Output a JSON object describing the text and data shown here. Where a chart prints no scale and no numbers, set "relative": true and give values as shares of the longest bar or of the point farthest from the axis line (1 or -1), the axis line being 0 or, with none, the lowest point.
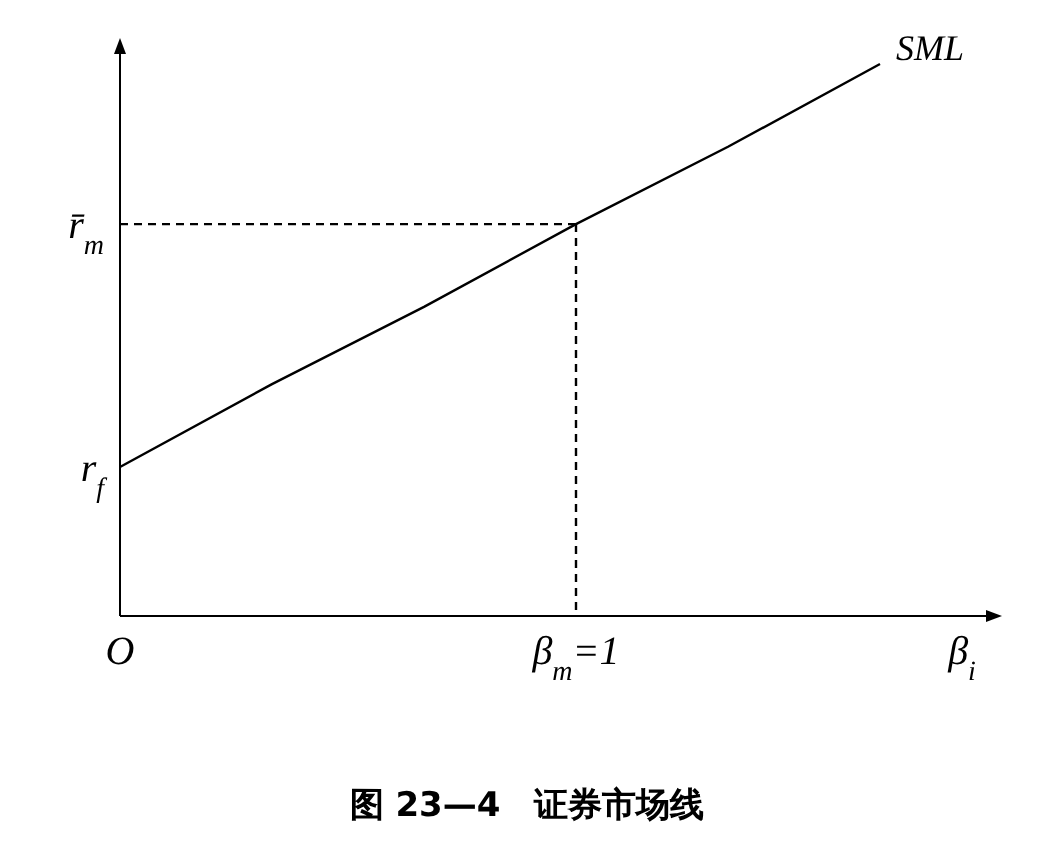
{
  "chart_data": {
    "type": "line",
    "title": "图 23—4　证券市场线",
    "xlabel": "β$_{i}$",
    "relative": true,
    "categories": [
      "O",
      null,
      null,
      "β$_{m}$=1",
      null,
      null
    ],
    "series": [
      {
        "name": "SML",
        "color": "#000000",
        "values": [
          0.27,
          0.42,
          0.56,
          0.71,
          0.85,
          1
        ],
        "line_style": "solid"
      },
      {
        "color": "#000000",
        "values": [
          0.71,
          0.71,
          0.71,
          0.71,
          null,
          null
        ],
        "line_style": "dashed"
      },
      {
        "color": "#000000",
        "x": [
          "β$_{m}$=1",
          "β$_{m}$=1"
        ],
        "values": [
          0.71,
          0
        ],
        "line_style": "dashed"
      }
    ],
    "annotations": [
      {
        "text": "r$_{f}$",
        "x": "O",
        "y": 0.27
      },
      {
        "text": "r̄$_{m}$",
        "x": "O",
        "y": 0.71
      }
    ]
  }
}
